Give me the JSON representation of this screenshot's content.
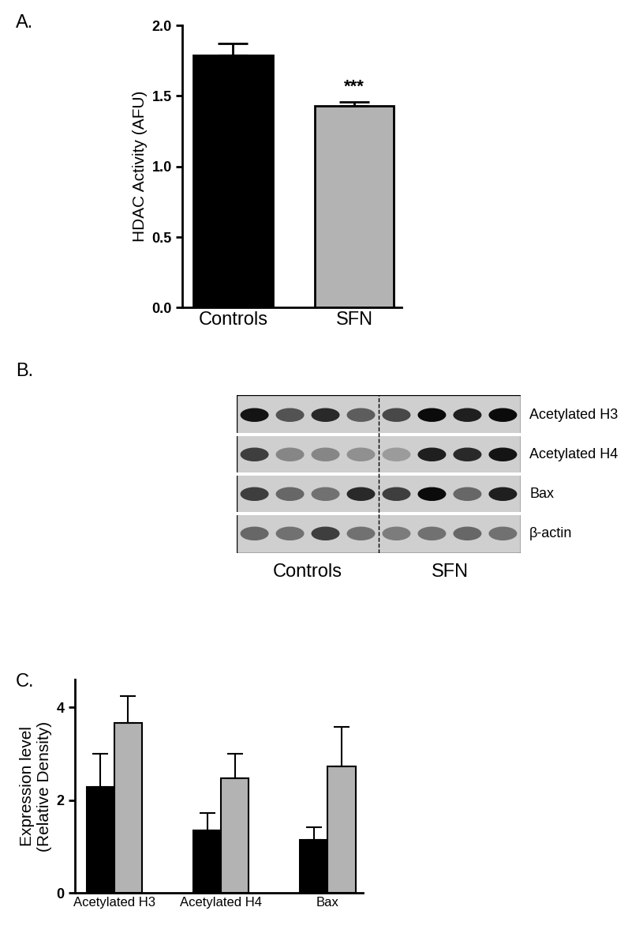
{
  "chart_data": [
    {
      "type": "bar",
      "title": "A.",
      "categories": [
        "Controls",
        "SFN"
      ],
      "values": [
        1.79,
        1.43
      ],
      "errors": [
        0.08,
        0.03
      ],
      "colors": [
        "#000000",
        "#b3b3b3"
      ],
      "y_label": "HDAC Activity (AFU)",
      "ylim": [
        0,
        2.0
      ],
      "yticks": [
        {
          "value": 0,
          "label": "0.0"
        },
        {
          "value": 0.5,
          "label": "0.5"
        },
        {
          "value": 1.0,
          "label": "1.0"
        },
        {
          "value": 1.5,
          "label": "1.5"
        },
        {
          "value": 2.0,
          "label": "2.0"
        }
      ],
      "annotations": [
        {
          "text": "***",
          "category": "SFN"
        }
      ],
      "grid": false
    },
    {
      "type": "bar",
      "title": "C.",
      "categories": [
        "Acetylated H3",
        "Acetylated H4",
        "Bax"
      ],
      "series": [
        {
          "color": "#000000",
          "values": [
            2.28,
            1.35,
            1.15
          ],
          "errors": [
            0.72,
            0.38,
            0.27
          ]
        },
        {
          "color": "#b3b3b3",
          "values": [
            3.67,
            2.47,
            2.72
          ],
          "errors": [
            0.57,
            0.53,
            0.86
          ]
        }
      ],
      "y_label": "Expression level\n(Relative Density)",
      "ylim": [
        0,
        4.6
      ],
      "yticks": [
        0,
        2,
        4
      ],
      "grid": false
    }
  ],
  "blot": {
    "title": "B.",
    "rows": [
      "Acetylated H3",
      "Acetylated H4",
      "Bax",
      "β-actin"
    ],
    "groups": [
      "Controls",
      "SFN"
    ],
    "intensities": [
      [
        0.9,
        0.6,
        0.8,
        0.55,
        0.65,
        0.95,
        0.85,
        0.95
      ],
      [
        0.7,
        0.35,
        0.35,
        0.3,
        0.25,
        0.85,
        0.8,
        0.9
      ],
      [
        0.7,
        0.5,
        0.45,
        0.8,
        0.7,
        0.95,
        0.5,
        0.85
      ],
      [
        0.5,
        0.45,
        0.7,
        0.45,
        0.4,
        0.45,
        0.5,
        0.45
      ]
    ]
  }
}
